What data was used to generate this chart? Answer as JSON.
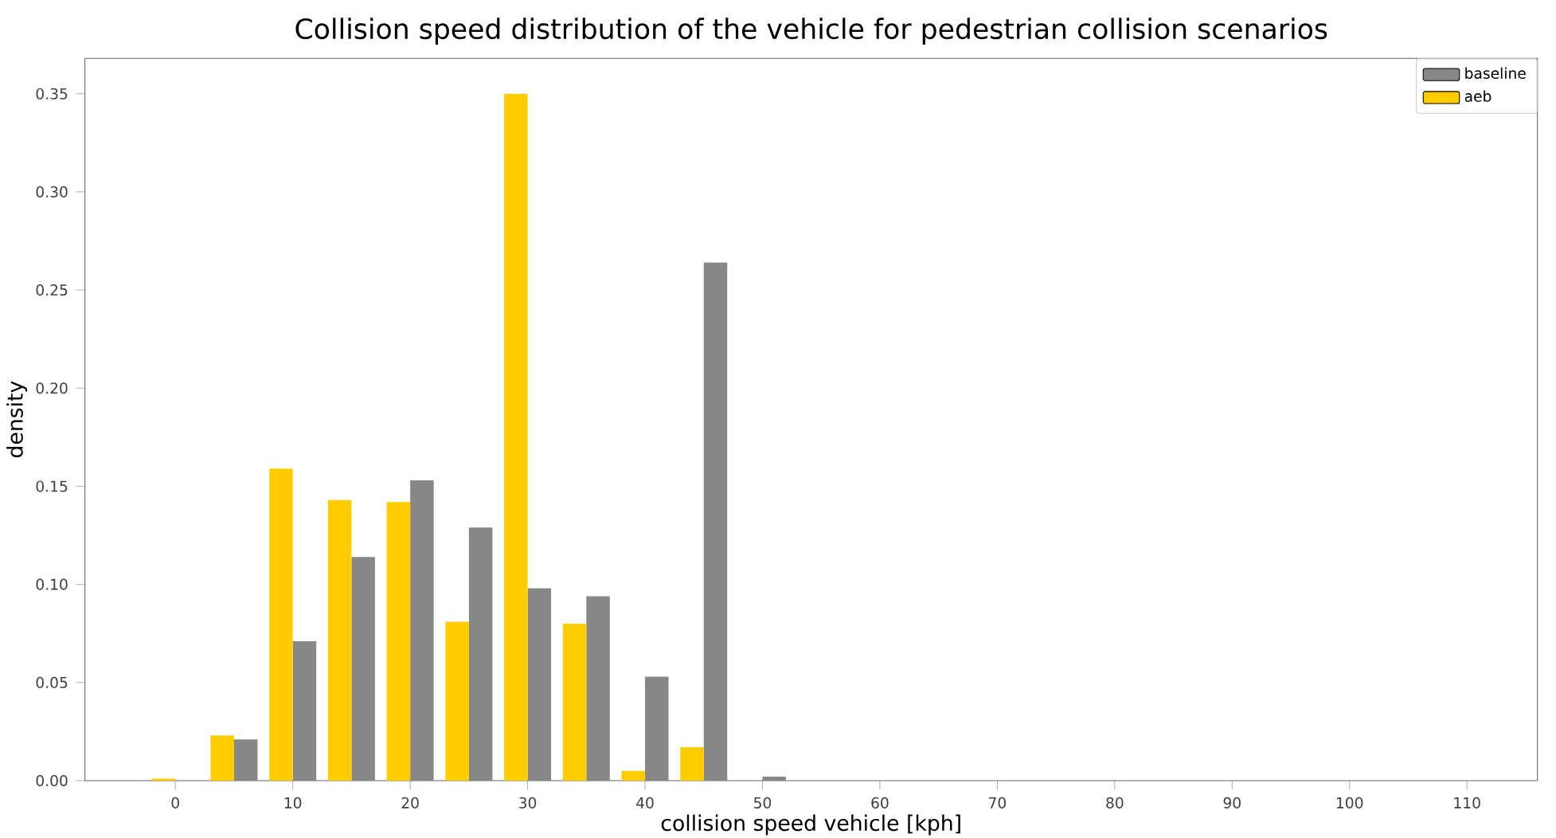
{
  "chart_data": {
    "type": "histogram",
    "title": "Collision speed distribution of the vehicle for pedestrian collision scenarios",
    "xlabel": "collision speed vehicle [kph]",
    "ylabel": "density",
    "bins": [
      -2.5,
      2.5,
      7.5,
      12.5,
      17.5,
      22.5,
      27.5,
      32.5,
      37.5,
      42.5,
      47.5,
      52.5
    ],
    "series": [
      {
        "name": "baseline",
        "color": "#878787",
        "values": [
          0,
          0.021,
          0.071,
          0.114,
          0.153,
          0.129,
          0.098,
          0.094,
          0.053,
          0.264,
          0.002
        ]
      },
      {
        "name": "aeb",
        "color": "#ffcc00",
        "values": [
          0.001,
          0.023,
          0.159,
          0.143,
          0.142,
          0.081,
          0.35,
          0.08,
          0.005,
          0.017,
          0
        ]
      }
    ],
    "xlim": [
      -7.7,
      116
    ],
    "ylim": [
      0,
      0.368
    ],
    "xticks": [
      0,
      10,
      20,
      30,
      40,
      50,
      60,
      70,
      80,
      90,
      100,
      110
    ],
    "yticks": [
      {
        "value": 0,
        "label": "0.00"
      },
      {
        "value": 0.05,
        "label": "0.05"
      },
      {
        "value": 0.1,
        "label": "0.10"
      },
      {
        "value": 0.15,
        "label": "0.15"
      },
      {
        "value": 0.2,
        "label": "0.20"
      },
      {
        "value": 0.25,
        "label": "0.25"
      },
      {
        "value": 0.3,
        "label": "0.30"
      },
      {
        "value": 0.35,
        "label": "0.35"
      }
    ],
    "legend": "top right"
  }
}
